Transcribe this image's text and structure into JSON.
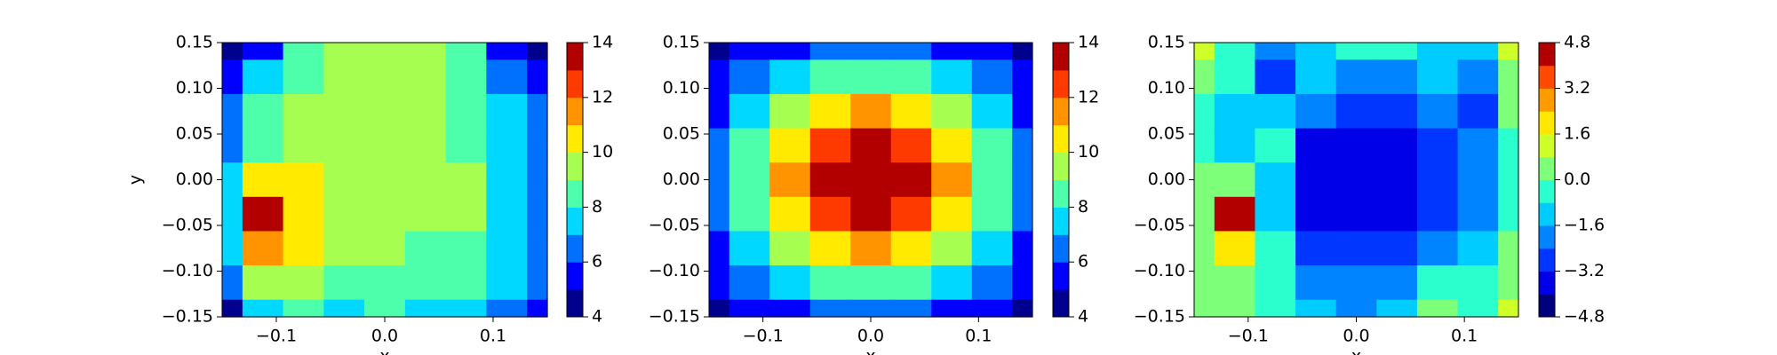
{
  "chart_data": [
    {
      "type": "contour",
      "ylabel": "y",
      "xlabel": "x",
      "x": [
        -0.15,
        -0.1125,
        -0.075,
        -0.0375,
        0,
        0.0375,
        0.075,
        0.1125,
        0.15
      ],
      "y": [
        0.15,
        0.1125,
        0.075,
        0.0375,
        0,
        -0.0375,
        -0.075,
        -0.1125,
        -0.15
      ],
      "z": [
        [
          4.5,
          5.5,
          8.5,
          9.2,
          9.2,
          9.0,
          8.0,
          5.5,
          4.8
        ],
        [
          5.5,
          7.0,
          8.6,
          9.2,
          9.3,
          9.1,
          8.2,
          6.5,
          5.5
        ],
        [
          6.0,
          8.0,
          9.2,
          9.3,
          9.5,
          9.3,
          8.5,
          7.2,
          6.2
        ],
        [
          6.5,
          8.8,
          9.6,
          9.6,
          9.7,
          9.5,
          8.8,
          7.5,
          6.5
        ],
        [
          7.0,
          10.3,
          10.2,
          9.8,
          9.6,
          9.6,
          9.0,
          7.6,
          6.6
        ],
        [
          7.5,
          13.5,
          10.6,
          9.7,
          9.4,
          9.3,
          9.0,
          7.5,
          6.5
        ],
        [
          7.0,
          11.5,
          10.4,
          9.3,
          9.0,
          8.8,
          8.8,
          7.4,
          6.3
        ],
        [
          6.0,
          9.0,
          9.4,
          8.8,
          8.5,
          8.4,
          8.5,
          7.0,
          6.0
        ],
        [
          4.8,
          7.2,
          8.0,
          7.0,
          8.5,
          7.2,
          7.5,
          6.0,
          5.5
        ]
      ],
      "levels": [
        4,
        5,
        6,
        7,
        8,
        9,
        10,
        11,
        12,
        13,
        14
      ],
      "colors": [
        "#00008f",
        "#0000ff",
        "#0070ff",
        "#00d8ff",
        "#4dffaa",
        "#a6ff50",
        "#ffea00",
        "#ff9400",
        "#ff3a00",
        "#b20000"
      ],
      "xlim": [
        -0.15,
        0.15
      ],
      "ylim": [
        -0.15,
        0.15
      ],
      "xticks": [
        {
          "value": -0.1,
          "label": "−0.1"
        },
        {
          "value": 0,
          "label": "0.0"
        },
        0.1
      ],
      "yticks": [
        0.15,
        {
          "value": 0.1,
          "label": "0.10"
        },
        0.05,
        {
          "value": 0,
          "label": "0.00"
        },
        {
          "value": -0.05,
          "label": "−0.05"
        },
        {
          "value": -0.1,
          "label": "−0.10"
        },
        {
          "value": -0.15,
          "label": "−0.15"
        }
      ],
      "cticks": [
        4,
        6,
        8,
        10,
        12,
        14
      ]
    },
    {
      "type": "contour",
      "xlabel": "x",
      "x": [
        -0.15,
        -0.1125,
        -0.075,
        -0.0375,
        0,
        0.0375,
        0.075,
        0.1125,
        0.15
      ],
      "y": [
        0.15,
        0.1125,
        0.075,
        0.0375,
        0,
        -0.0375,
        -0.075,
        -0.1125,
        -0.15
      ],
      "z": [
        [
          4.4,
          5.0,
          5.8,
          6.3,
          6.5,
          6.3,
          5.8,
          5.0,
          4.4
        ],
        [
          5.0,
          6.1,
          7.4,
          8.4,
          8.8,
          8.4,
          7.4,
          6.1,
          5.0
        ],
        [
          5.8,
          7.4,
          9.2,
          10.6,
          11.2,
          10.6,
          9.2,
          7.4,
          5.8
        ],
        [
          6.3,
          8.4,
          10.6,
          12.6,
          13.2,
          12.6,
          10.6,
          8.4,
          6.3
        ],
        [
          6.5,
          8.8,
          11.2,
          13.2,
          14.3,
          13.2,
          11.2,
          8.8,
          6.5
        ],
        [
          6.3,
          8.4,
          10.6,
          12.6,
          13.2,
          12.6,
          10.6,
          8.4,
          6.3
        ],
        [
          5.8,
          7.4,
          9.2,
          10.6,
          11.2,
          10.6,
          9.2,
          7.4,
          5.8
        ],
        [
          5.0,
          6.1,
          7.4,
          8.4,
          8.8,
          8.4,
          7.4,
          6.1,
          5.0
        ],
        [
          4.4,
          5.0,
          5.8,
          6.3,
          6.5,
          6.3,
          5.8,
          5.0,
          4.4
        ]
      ],
      "levels": [
        4,
        5,
        6,
        7,
        8,
        9,
        10,
        11,
        12,
        13,
        14
      ],
      "colors": [
        "#00008f",
        "#0000ff",
        "#0070ff",
        "#00d8ff",
        "#4dffaa",
        "#a6ff50",
        "#ffea00",
        "#ff9400",
        "#ff3a00",
        "#b20000"
      ],
      "xlim": [
        -0.15,
        0.15
      ],
      "ylim": [
        -0.15,
        0.15
      ],
      "xticks": [
        {
          "value": -0.1,
          "label": "−0.1"
        },
        {
          "value": 0,
          "label": "0.0"
        },
        0.1
      ],
      "yticks": [
        0.15,
        {
          "value": 0.1,
          "label": "0.10"
        },
        0.05,
        {
          "value": 0,
          "label": "0.00"
        },
        {
          "value": -0.05,
          "label": "−0.05"
        },
        {
          "value": -0.1,
          "label": "−0.10"
        },
        {
          "value": -0.15,
          "label": "−0.15"
        }
      ],
      "cticks": [
        4,
        6,
        8,
        10,
        12,
        14
      ]
    },
    {
      "type": "contour",
      "xlabel": "x",
      "x": [
        -0.15,
        -0.1125,
        -0.075,
        -0.0375,
        0,
        0.0375,
        0.075,
        0.1125,
        0.15
      ],
      "y": [
        0.15,
        0.1125,
        0.075,
        0.0375,
        0,
        -0.0375,
        -0.075,
        -0.1125,
        -0.15
      ],
      "z": [
        [
          0.8,
          -0.5,
          -2.0,
          -1.2,
          -0.2,
          -0.5,
          -1.0,
          -1.5,
          0.8
        ],
        [
          0.2,
          -0.8,
          -2.5,
          -1.6,
          -1.8,
          -2.0,
          -1.5,
          -2.2,
          0.6
        ],
        [
          -0.5,
          -1.5,
          -1.2,
          -2.4,
          -2.6,
          -2.8,
          -2.4,
          -2.5,
          0.2
        ],
        [
          -0.8,
          -1.2,
          -0.8,
          -3.3,
          -3.4,
          -3.4,
          -2.8,
          -2.4,
          -0.2
        ],
        [
          0.2,
          0.5,
          -1.4,
          -3.4,
          -3.6,
          -3.8,
          -2.8,
          -2.0,
          -0.5
        ],
        [
          0.6,
          4.2,
          -1.0,
          -3.3,
          -3.6,
          -3.6,
          -2.6,
          -1.8,
          -0.3
        ],
        [
          0.6,
          1.8,
          -0.6,
          -2.6,
          -3.0,
          -3.0,
          -2.4,
          -1.5,
          0.0
        ],
        [
          0.3,
          0.4,
          -0.6,
          -2.0,
          -2.2,
          -2.4,
          -0.5,
          -0.8,
          0.6
        ],
        [
          0.6,
          0.4,
          -0.3,
          -1.4,
          -1.8,
          -1.6,
          0.4,
          -0.3,
          1.2
        ]
      ],
      "levels": [
        -4.8,
        -4.0,
        -3.2,
        -2.4,
        -1.6,
        -0.8,
        0,
        0.8,
        1.6,
        2.4,
        3.2,
        4.0,
        4.8
      ],
      "colors": [
        "#00007f",
        "#0000e8",
        "#0036ff",
        "#0084ff",
        "#00ccff",
        "#2bffcd",
        "#7dff7a",
        "#cfff28",
        "#ffe800",
        "#ff9a00",
        "#ff4a00",
        "#b20000"
      ],
      "xlim": [
        -0.15,
        0.15
      ],
      "ylim": [
        -0.15,
        0.15
      ],
      "xticks": [
        {
          "value": -0.1,
          "label": "−0.1"
        },
        {
          "value": 0,
          "label": "0.0"
        },
        0.1
      ],
      "yticks": [
        0.15,
        {
          "value": 0.1,
          "label": "0.10"
        },
        0.05,
        {
          "value": 0,
          "label": "0.00"
        },
        {
          "value": -0.05,
          "label": "−0.05"
        },
        {
          "value": -0.1,
          "label": "−0.10"
        },
        {
          "value": -0.15,
          "label": "−0.15"
        }
      ],
      "cticks": [
        {
          "value": -4.8,
          "label": "−4.8"
        },
        {
          "value": -3.2,
          "label": "−3.2"
        },
        {
          "value": -1.6,
          "label": "−1.6"
        },
        {
          "value": 0,
          "label": "0.0"
        },
        1.6,
        3.2,
        4.8
      ]
    }
  ]
}
